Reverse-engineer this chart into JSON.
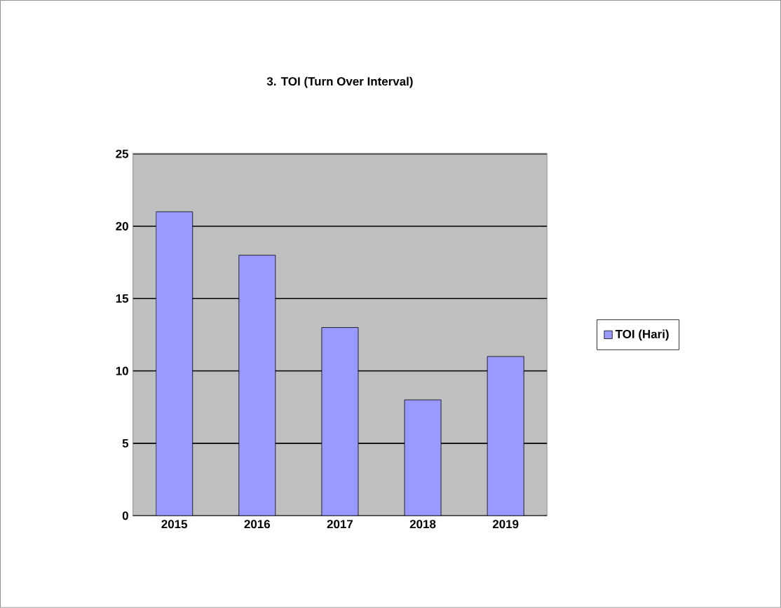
{
  "chart_data": {
    "type": "bar",
    "title": "3. TOI (Turn Over Interval)",
    "categories": [
      "2015",
      "2016",
      "2017",
      "2018",
      "2019"
    ],
    "series": [
      {
        "name": "TOI (Hari)",
        "color": "#9999ff",
        "values": [
          21,
          18,
          13,
          8,
          11
        ]
      }
    ],
    "ylim": [
      0,
      25
    ],
    "yticks": [
      0,
      5,
      10,
      15,
      20,
      25
    ],
    "grid": "y",
    "legend": "right"
  }
}
